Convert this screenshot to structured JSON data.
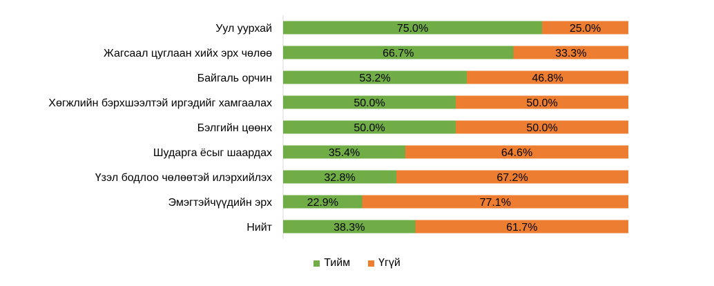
{
  "chart_data": {
    "type": "bar",
    "orientation": "horizontal",
    "stacked": true,
    "percent": true,
    "categories": [
      "Уул уурхай",
      "Жагсаал цуглаан хийх эрх чөлөө",
      "Байгаль орчин",
      "Хөгжлийн бэрхшээлтэй иргэдийг хамгаалах",
      "Бэлгийн цөөнх",
      "Шударга ёсыг шаардах",
      "Үзэл бодлоо чөлөөтэй илэрхийлэх",
      "Эмэгтэйчүүдийн эрх",
      "Нийт"
    ],
    "series": [
      {
        "name": "Тийм",
        "color": "#70AD47",
        "values": [
          75.0,
          66.7,
          53.2,
          50.0,
          50.0,
          35.4,
          32.8,
          22.9,
          38.3
        ],
        "labels": [
          "75.0%",
          "66.7%",
          "53.2%",
          "50.0%",
          "50.0%",
          "35.4%",
          "32.8%",
          "22.9%",
          "38.3%"
        ]
      },
      {
        "name": "Үгүй",
        "color": "#ED7D31",
        "values": [
          25.0,
          33.3,
          46.8,
          50.0,
          50.0,
          64.6,
          67.2,
          77.1,
          61.7
        ],
        "labels": [
          "25.0%",
          "33.3%",
          "46.8%",
          "50.0%",
          "50.0%",
          "64.6%",
          "67.2%",
          "77.1%",
          "61.7%"
        ]
      }
    ],
    "xlim": [
      0,
      100
    ],
    "grid": false,
    "legend_position": "bottom"
  }
}
